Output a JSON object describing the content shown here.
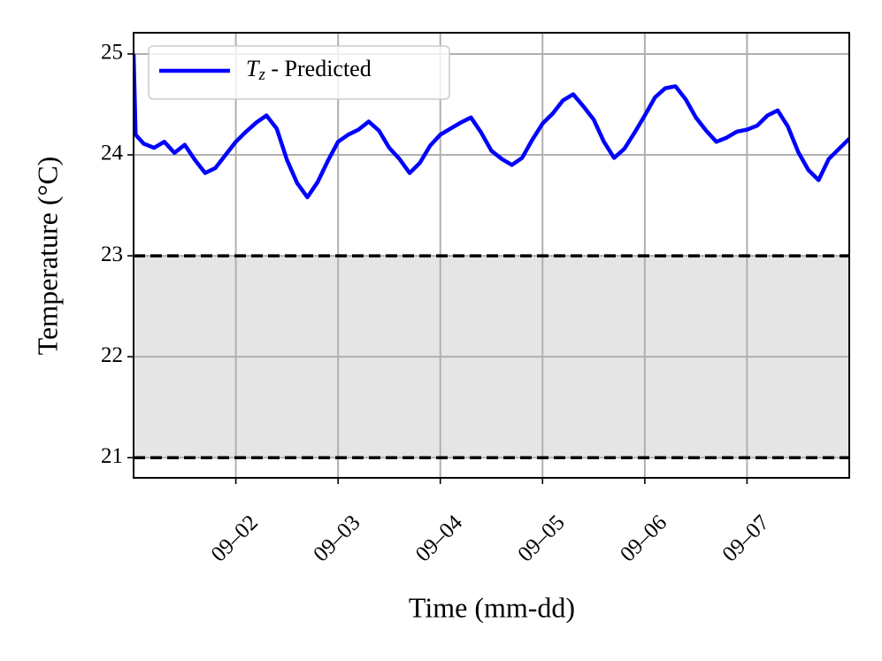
{
  "chart_data": {
    "type": "line",
    "xlabel": "Time (mm-dd)",
    "ylabel": "Temperature (°C)",
    "xlim": [
      1,
      8
    ],
    "ylim": [
      20.8,
      25.21
    ],
    "xticks": [
      {
        "value": 2,
        "label": "09–02"
      },
      {
        "value": 3,
        "label": "09–03"
      },
      {
        "value": 4,
        "label": "09–04"
      },
      {
        "value": 5,
        "label": "09–05"
      },
      {
        "value": 6,
        "label": "09–06"
      },
      {
        "value": 7,
        "label": "09–07"
      }
    ],
    "yticks": [
      21,
      22,
      23,
      24,
      25
    ],
    "grid": true,
    "legend": "upper left",
    "band": [
      21,
      23
    ],
    "band_color": "#e5e5e5",
    "x": [
      1,
      1.02,
      1.1,
      1.2,
      1.3,
      1.4,
      1.5,
      1.6,
      1.7,
      1.8,
      1.9,
      2.0,
      2.1,
      2.2,
      2.3,
      2.4,
      2.5,
      2.6,
      2.7,
      2.8,
      2.9,
      3.0,
      3.1,
      3.2,
      3.3,
      3.4,
      3.5,
      3.6,
      3.7,
      3.8,
      3.9,
      4.0,
      4.1,
      4.2,
      4.3,
      4.4,
      4.5,
      4.6,
      4.7,
      4.8,
      4.9,
      5.0,
      5.1,
      5.2,
      5.3,
      5.4,
      5.5,
      5.6,
      5.7,
      5.8,
      5.9,
      6.0,
      6.1,
      6.2,
      6.3,
      6.4,
      6.5,
      6.6,
      6.7,
      6.8,
      6.9,
      7.0,
      7.1,
      7.2,
      7.3,
      7.4,
      7.5,
      7.6,
      7.7,
      7.8,
      7.9,
      8.0
    ],
    "series": [
      {
        "name": "Tz - Predicted",
        "color": "#0000ff",
        "values": [
          25.0,
          24.2,
          24.11,
          24.07,
          24.13,
          24.02,
          24.1,
          23.95,
          23.82,
          23.87,
          24.0,
          24.13,
          24.23,
          24.32,
          24.39,
          24.26,
          23.95,
          23.72,
          23.58,
          23.73,
          23.94,
          24.13,
          24.2,
          24.25,
          24.33,
          24.24,
          24.07,
          23.96,
          23.82,
          23.92,
          24.09,
          24.2,
          24.26,
          24.32,
          24.37,
          24.22,
          24.04,
          23.96,
          23.9,
          23.97,
          24.15,
          24.31,
          24.41,
          24.54,
          24.6,
          24.48,
          24.35,
          24.13,
          23.97,
          24.06,
          24.22,
          24.39,
          24.57,
          24.66,
          24.68,
          24.55,
          24.37,
          24.24,
          24.13,
          24.17,
          24.23,
          24.25,
          24.29,
          24.39,
          24.44,
          24.28,
          24.03,
          23.85,
          23.75,
          23.96,
          24.06,
          24.16
        ]
      }
    ]
  }
}
